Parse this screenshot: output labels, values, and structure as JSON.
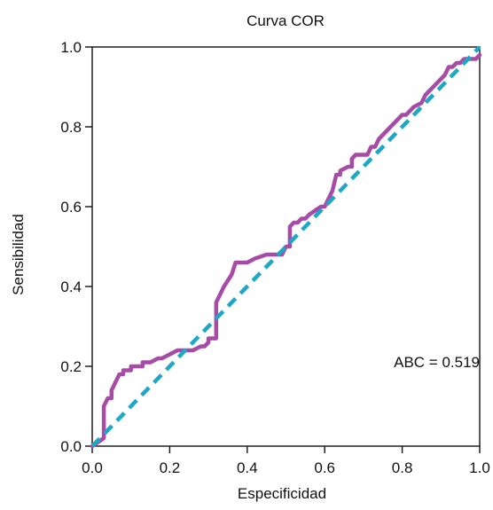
{
  "chart_data": {
    "type": "line",
    "title": "Curva COR",
    "xlabel": "Especificidad",
    "ylabel": "Sensibilidad",
    "xlim": [
      0,
      1
    ],
    "ylim": [
      0,
      1
    ],
    "xticks": [
      "0.0",
      "0.2",
      "0.4",
      "0.6",
      "0.8",
      "1.0"
    ],
    "yticks": [
      "0.0",
      "0.2",
      "0.4",
      "0.6",
      "0.8",
      "1.0"
    ],
    "grid": false,
    "annotation": "ABC = 0.519",
    "series": [
      {
        "color": "#a64ca6",
        "style": "solid",
        "x": [
          0.0,
          0.03,
          0.03,
          0.04,
          0.05,
          0.05,
          0.06,
          0.07,
          0.08,
          0.08,
          0.1,
          0.1,
          0.13,
          0.13,
          0.15,
          0.17,
          0.18,
          0.2,
          0.22,
          0.24,
          0.26,
          0.28,
          0.29,
          0.3,
          0.3,
          0.32,
          0.32,
          0.34,
          0.36,
          0.37,
          0.38,
          0.4,
          0.42,
          0.45,
          0.47,
          0.49,
          0.5,
          0.51,
          0.51,
          0.52,
          0.53,
          0.54,
          0.55,
          0.56,
          0.59,
          0.6,
          0.62,
          0.63,
          0.64,
          0.64,
          0.66,
          0.67,
          0.67,
          0.68,
          0.71,
          0.72,
          0.73,
          0.74,
          0.75,
          0.77,
          0.79,
          0.8,
          0.81,
          0.83,
          0.85,
          0.86,
          0.87,
          0.88,
          0.89,
          0.9,
          0.91,
          0.92,
          0.93,
          0.94,
          0.95,
          0.96,
          0.97,
          0.98,
          0.99,
          1.0
        ],
        "y": [
          0.0,
          0.02,
          0.1,
          0.12,
          0.12,
          0.14,
          0.16,
          0.18,
          0.18,
          0.19,
          0.19,
          0.2,
          0.2,
          0.21,
          0.21,
          0.22,
          0.22,
          0.23,
          0.24,
          0.24,
          0.24,
          0.25,
          0.25,
          0.26,
          0.27,
          0.27,
          0.36,
          0.4,
          0.43,
          0.46,
          0.46,
          0.46,
          0.47,
          0.48,
          0.48,
          0.48,
          0.5,
          0.5,
          0.55,
          0.56,
          0.56,
          0.57,
          0.57,
          0.58,
          0.6,
          0.6,
          0.64,
          0.68,
          0.68,
          0.69,
          0.7,
          0.7,
          0.72,
          0.73,
          0.73,
          0.75,
          0.75,
          0.77,
          0.78,
          0.8,
          0.82,
          0.83,
          0.83,
          0.85,
          0.86,
          0.88,
          0.89,
          0.9,
          0.91,
          0.92,
          0.93,
          0.95,
          0.95,
          0.96,
          0.96,
          0.97,
          0.97,
          0.97,
          0.97,
          0.98
        ]
      },
      {
        "color": "#1fa7c6",
        "style": "dashed",
        "x": [
          0,
          1
        ],
        "y": [
          0,
          1
        ]
      }
    ]
  }
}
